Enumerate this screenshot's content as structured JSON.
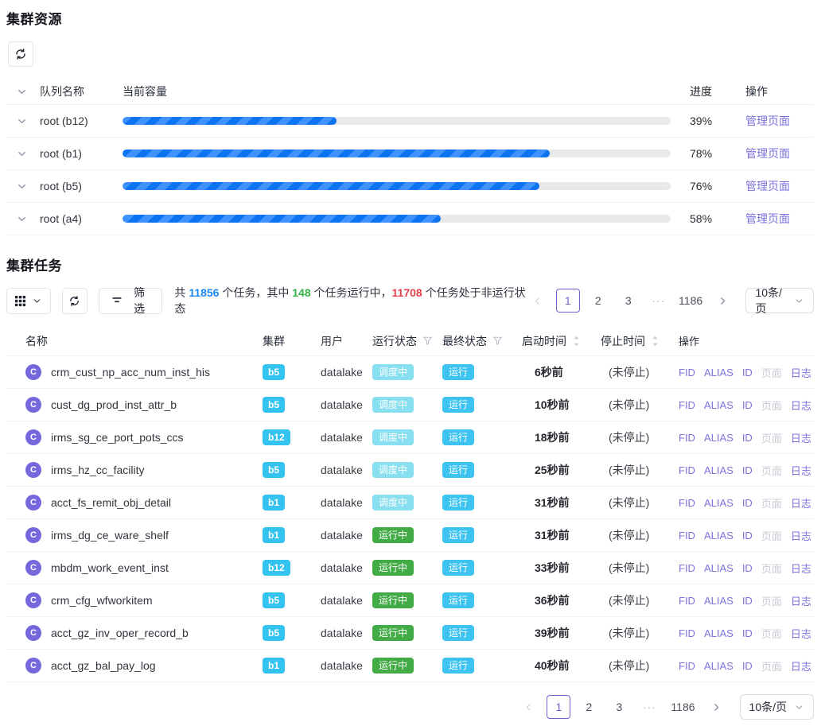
{
  "resources": {
    "title": "集群资源",
    "columns": {
      "queue": "队列名称",
      "capacity": "当前容量",
      "progress": "进度",
      "action": "操作"
    },
    "action_label": "管理页面",
    "rows": [
      {
        "queue": "root (b12)",
        "percent": 39,
        "percent_label": "39%"
      },
      {
        "queue": "root (b1)",
        "percent": 78,
        "percent_label": "78%"
      },
      {
        "queue": "root (b5)",
        "percent": 76,
        "percent_label": "76%"
      },
      {
        "queue": "root (a4)",
        "percent": 58,
        "percent_label": "58%"
      }
    ]
  },
  "tasks": {
    "title": "集群任务",
    "toolbar": {
      "filter_label": "筛选",
      "summary": {
        "prefix": "共 ",
        "total": "11856",
        "mid1": " 个任务，其中 ",
        "running": "148",
        "mid2": " 个任务运行中，",
        "non_running": "11708",
        "suffix": " 个任务处于非运行状态"
      }
    },
    "pagination": {
      "page1": "1",
      "page2": "2",
      "page3": "3",
      "ellipsis": "···",
      "last_page": "1186",
      "current": "1",
      "page_size": "10条/页"
    },
    "columns": {
      "name": "名称",
      "cluster": "集群",
      "user": "用户",
      "run_state": "运行状态",
      "final_state": "最终状态",
      "start_time": "启动时间",
      "stop_time": "停止时间",
      "action": "操作"
    },
    "action_labels": {
      "fid": "FID",
      "alias": "ALIAS",
      "id": "ID",
      "page": "页面",
      "log": "日志"
    },
    "rows": [
      {
        "avatar": "C",
        "name": "crm_cust_np_acc_num_inst_his",
        "cluster": "b5",
        "user": "datalake",
        "run_state": "调度中",
        "run_state_type": "badge-sched",
        "final_state": "运行",
        "start_time": "6秒前",
        "stop_time": "(未停止)"
      },
      {
        "avatar": "C",
        "name": "cust_dg_prod_inst_attr_b",
        "cluster": "b5",
        "user": "datalake",
        "run_state": "调度中",
        "run_state_type": "badge-sched",
        "final_state": "运行",
        "start_time": "10秒前",
        "stop_time": "(未停止)"
      },
      {
        "avatar": "C",
        "name": "irms_sg_ce_port_pots_ccs",
        "cluster": "b12",
        "user": "datalake",
        "run_state": "调度中",
        "run_state_type": "badge-sched",
        "final_state": "运行",
        "start_time": "18秒前",
        "stop_time": "(未停止)"
      },
      {
        "avatar": "C",
        "name": "irms_hz_cc_facility",
        "cluster": "b5",
        "user": "datalake",
        "run_state": "调度中",
        "run_state_type": "badge-sched",
        "final_state": "运行",
        "start_time": "25秒前",
        "stop_time": "(未停止)"
      },
      {
        "avatar": "C",
        "name": "acct_fs_remit_obj_detail",
        "cluster": "b1",
        "user": "datalake",
        "run_state": "调度中",
        "run_state_type": "badge-sched",
        "final_state": "运行",
        "start_time": "31秒前",
        "stop_time": "(未停止)"
      },
      {
        "avatar": "C",
        "name": "irms_dg_ce_ware_shelf",
        "cluster": "b1",
        "user": "datalake",
        "run_state": "运行中",
        "run_state_type": "badge-run",
        "final_state": "运行",
        "start_time": "31秒前",
        "stop_time": "(未停止)"
      },
      {
        "avatar": "C",
        "name": "mbdm_work_event_inst",
        "cluster": "b12",
        "user": "datalake",
        "run_state": "运行中",
        "run_state_type": "badge-run",
        "final_state": "运行",
        "start_time": "33秒前",
        "stop_time": "(未停止)"
      },
      {
        "avatar": "C",
        "name": "crm_cfg_wfworkitem",
        "cluster": "b5",
        "user": "datalake",
        "run_state": "运行中",
        "run_state_type": "badge-run",
        "final_state": "运行",
        "start_time": "36秒前",
        "stop_time": "(未停止)"
      },
      {
        "avatar": "C",
        "name": "acct_gz_inv_oper_record_b",
        "cluster": "b5",
        "user": "datalake",
        "run_state": "运行中",
        "run_state_type": "badge-run",
        "final_state": "运行",
        "start_time": "39秒前",
        "stop_time": "(未停止)"
      },
      {
        "avatar": "C",
        "name": "acct_gz_bal_pay_log",
        "cluster": "b1",
        "user": "datalake",
        "run_state": "运行中",
        "run_state_type": "badge-run",
        "final_state": "运行",
        "start_time": "40秒前",
        "stop_time": "(未停止)"
      }
    ]
  },
  "colors": {
    "accent_blue": "#1b87f5",
    "green": "#33b348",
    "red": "#e5414e",
    "link_purple": "#7b72de",
    "badge_cyan": "#34c3ef",
    "badge_light_cyan": "#87dff0",
    "badge_green": "#42ab45",
    "avatar_purple": "#7568dd",
    "progress_blue": "#0c74f1"
  }
}
